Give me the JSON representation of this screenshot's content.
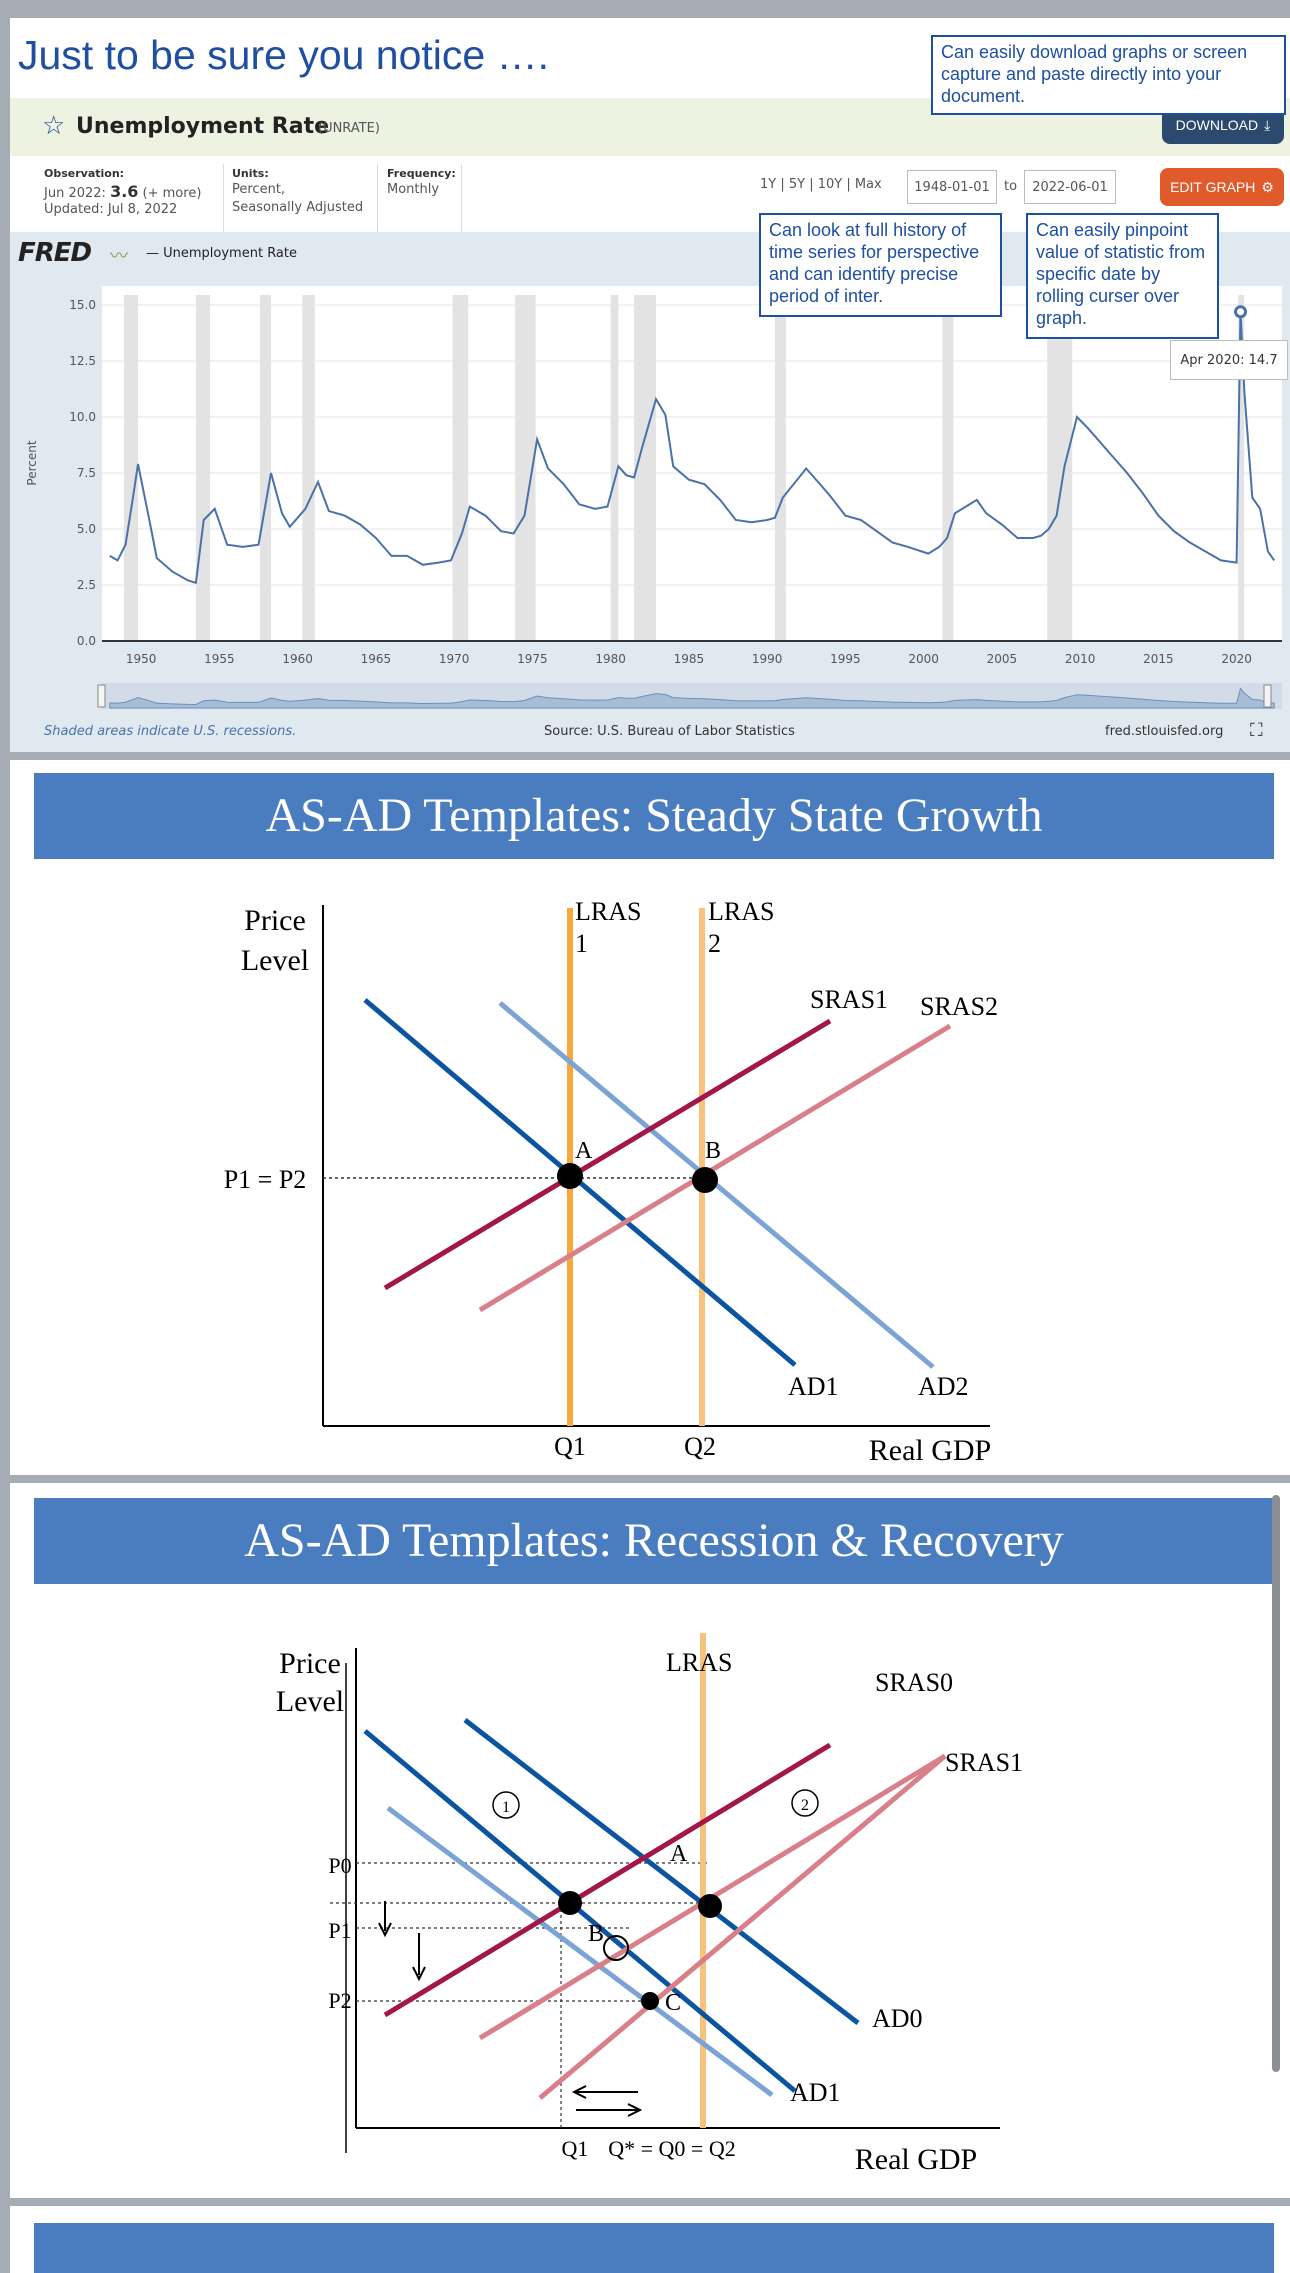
{
  "slide1": {
    "heading": "Just to be sure you notice ….",
    "callouts": {
      "download": "Can easily download graphs or screen capture and paste directly into your document.",
      "history": "Can look at full history of time series for perspective and can identify precise period of inter.",
      "pinpoint": "Can easily pinpoint value of statistic from specific date by rolling curser over graph."
    },
    "fred": {
      "title": "Unemployment Rate",
      "series_id": "(UNRATE)",
      "download_label": "DOWNLOAD",
      "edit_label": "EDIT GRAPH",
      "observation_label": "Observation:",
      "observation_date": "Jun 2022:",
      "observation_value": "3.6",
      "observation_more": "(+ more)",
      "updated": "Updated: Jul 8, 2022",
      "units_label": "Units:",
      "units_value_1": "Percent,",
      "units_value_2": "Seasonally Adjusted",
      "frequency_label": "Frequency:",
      "frequency_value": "Monthly",
      "range_links": "1Y | 5Y | 10Y | Max",
      "date_from": "1948-01-01",
      "date_to_word": "to",
      "date_to": "2022-06-01",
      "logo": "FRED",
      "legend": "— Unemployment Rate",
      "tooltip_date": "Apr 2020:",
      "tooltip_value": "14.7",
      "footer_left": "Shaded areas indicate U.S. recessions.",
      "footer_center": "Source: U.S. Bureau of Labor Statistics",
      "footer_right": "fred.stlouisfed.org"
    }
  },
  "chart_data": [
    {
      "type": "line",
      "title": "Unemployment Rate",
      "ylabel": "Percent",
      "ylim": [
        0,
        15
      ],
      "yticks": [
        "0.0",
        "2.5",
        "5.0",
        "7.5",
        "10.0",
        "12.5",
        "15.0"
      ],
      "xticks": [
        "1950",
        "1955",
        "1960",
        "1965",
        "1970",
        "1975",
        "1980",
        "1985",
        "1990",
        "1995",
        "2000",
        "2005",
        "2010",
        "2015",
        "2020"
      ],
      "series": [
        {
          "name": "Unemployment Rate",
          "color": "#4a72a8",
          "x": [
            1948.0,
            1948.5,
            1949.0,
            1949.5,
            1949.8,
            1950.5,
            1951.0,
            1952.0,
            1953.0,
            1953.5,
            1954.0,
            1954.7,
            1955.5,
            1956.5,
            1957.5,
            1958.3,
            1959.0,
            1959.5,
            1960.0,
            1960.5,
            1961.3,
            1962.0,
            1963.0,
            1964.0,
            1965.0,
            1966.0,
            1967.0,
            1968.0,
            1969.0,
            1969.8,
            1970.5,
            1971.0,
            1972.0,
            1973.0,
            1973.8,
            1974.5,
            1975.3,
            1976.0,
            1977.0,
            1978.0,
            1979.0,
            1979.8,
            1980.5,
            1981.0,
            1981.5,
            1982.0,
            1982.9,
            1983.5,
            1984.0,
            1985.0,
            1986.0,
            1987.0,
            1988.0,
            1989.0,
            1990.0,
            1990.5,
            1991.0,
            1992.5,
            1993.5,
            1994.0,
            1995.0,
            1996.0,
            1997.0,
            1998.0,
            1999.0,
            2000.3,
            2001.0,
            2001.5,
            2002.0,
            2003.4,
            2004.0,
            2005.0,
            2006.0,
            2007.0,
            2007.5,
            2008.0,
            2008.5,
            2009.0,
            2009.8,
            2010.5,
            2011.0,
            2012.0,
            2013.0,
            2014.0,
            2015.0,
            2016.0,
            2017.0,
            2018.0,
            2019.0,
            2020.0,
            2020.25,
            2020.5,
            2021.0,
            2021.5,
            2022.0,
            2022.4
          ],
          "y": [
            3.8,
            3.6,
            4.3,
            6.5,
            7.9,
            5.5,
            3.7,
            3.1,
            2.7,
            2.6,
            5.4,
            5.9,
            4.3,
            4.2,
            4.3,
            7.5,
            5.7,
            5.1,
            5.5,
            5.9,
            7.1,
            5.8,
            5.6,
            5.2,
            4.6,
            3.8,
            3.8,
            3.4,
            3.5,
            3.6,
            4.8,
            6.0,
            5.6,
            4.9,
            4.8,
            5.6,
            9.0,
            7.7,
            7.0,
            6.1,
            5.9,
            6.0,
            7.8,
            7.4,
            7.3,
            8.6,
            10.8,
            10.1,
            7.8,
            7.2,
            7.0,
            6.3,
            5.4,
            5.3,
            5.4,
            5.5,
            6.4,
            7.7,
            6.9,
            6.5,
            5.6,
            5.4,
            4.9,
            4.4,
            4.2,
            3.9,
            4.2,
            4.6,
            5.7,
            6.3,
            5.7,
            5.2,
            4.6,
            4.6,
            4.7,
            5.0,
            5.6,
            7.8,
            10.0,
            9.5,
            9.1,
            8.3,
            7.5,
            6.6,
            5.6,
            4.9,
            4.4,
            4.0,
            3.6,
            3.5,
            14.7,
            11.1,
            6.4,
            5.9,
            4.0,
            3.6
          ]
        }
      ],
      "recessions": [
        [
          1948.9,
          1949.8
        ],
        [
          1953.5,
          1954.4
        ],
        [
          1957.6,
          1958.3
        ],
        [
          1960.3,
          1961.1
        ],
        [
          1969.9,
          1970.9
        ],
        [
          1973.9,
          1975.2
        ],
        [
          1980.0,
          1980.5
        ],
        [
          1981.5,
          1982.9
        ],
        [
          1990.5,
          1991.2
        ],
        [
          2001.2,
          2001.9
        ],
        [
          2007.9,
          2009.5
        ],
        [
          2020.1,
          2020.3
        ]
      ]
    },
    {
      "type": "line",
      "title": "AS-AD Templates: Steady State Growth",
      "xlabel": "Real GDP",
      "ylabel": "Price Level",
      "xticks": [
        "Q1",
        "Q2"
      ],
      "yticks": [
        "P1 = P2"
      ],
      "series": [
        {
          "name": "LRAS 1",
          "color": "#f7a93b"
        },
        {
          "name": "LRAS 2",
          "color": "#f7c27b"
        },
        {
          "name": "SRAS1",
          "color": "#a3164a"
        },
        {
          "name": "SRAS2",
          "color": "#d97f8a"
        },
        {
          "name": "AD1",
          "color": "#0b55a0"
        },
        {
          "name": "AD2",
          "color": "#7ba3d3"
        }
      ],
      "points": [
        "A",
        "B"
      ]
    },
    {
      "type": "line",
      "title": "AS-AD Templates: Recession & Recovery",
      "xlabel": "Real GDP",
      "ylabel": "Price Level",
      "xticks": [
        "Q1",
        "Q* = Q0 = Q2"
      ],
      "yticks": [
        "P0",
        "P1",
        "P2"
      ],
      "series": [
        {
          "name": "LRAS",
          "color": "#f7c27b"
        },
        {
          "name": "SRAS0",
          "color": "#a3164a"
        },
        {
          "name": "SRAS1",
          "color": "#d97f8a"
        },
        {
          "name": "AD0",
          "color": "#0b55a0"
        },
        {
          "name": "AD1",
          "color": "#0b55a0"
        }
      ],
      "points": [
        "A",
        "B",
        "C"
      ],
      "annotations": [
        "1",
        "2"
      ]
    }
  ]
}
